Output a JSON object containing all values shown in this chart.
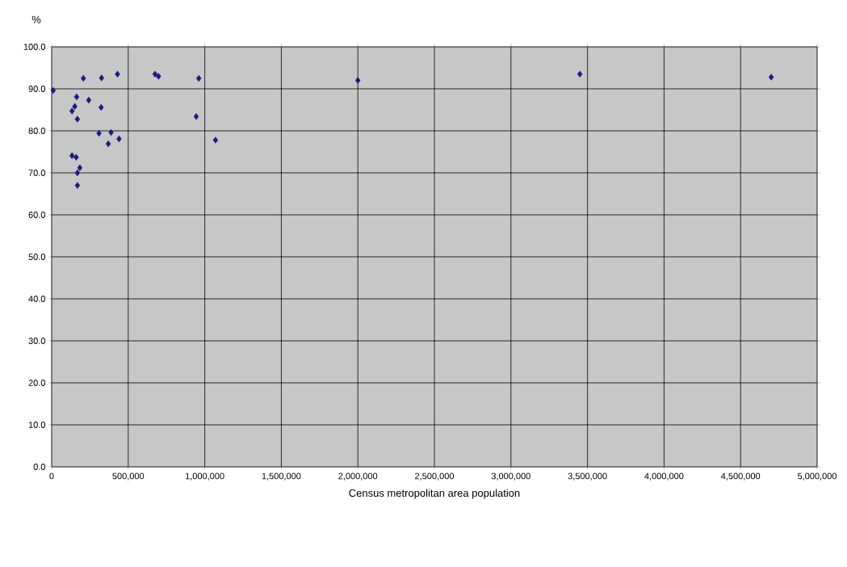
{
  "chart_data": {
    "type": "scatter",
    "xlabel": "Census metropolitan area population",
    "ylabel": "%",
    "x": [
      10000,
      207000,
      326000,
      430000,
      675000,
      698000,
      961000,
      163000,
      242000,
      151000,
      133000,
      323000,
      168000,
      944000,
      309000,
      388000,
      440000,
      370000,
      1070000,
      133000,
      160000,
      184000,
      168000,
      168000,
      2000000,
      3450000,
      4700000
    ],
    "values": [
      89.6,
      92.5,
      92.6,
      93.5,
      93.5,
      93.0,
      92.5,
      88.1,
      87.3,
      85.8,
      84.7,
      85.6,
      82.8,
      83.4,
      79.4,
      79.6,
      78.1,
      76.9,
      77.8,
      74.1,
      73.7,
      71.2,
      70.0,
      67.0,
      92.0,
      93.5,
      92.8
    ],
    "color": "#1a1a80",
    "marker": "diamond",
    "grid": true,
    "xlim": [
      0,
      5000000
    ],
    "ylim": [
      0,
      100
    ],
    "xticks": [
      0,
      {
        "value": 500000,
        "label": "500,000"
      },
      {
        "value": 1000000,
        "label": "1,000,000"
      },
      {
        "value": 1500000,
        "label": "1,500,000"
      },
      {
        "value": 2000000,
        "label": "2,000,000"
      },
      {
        "value": 2500000,
        "label": "2,500,000"
      },
      {
        "value": 3000000,
        "label": "3,000,000"
      },
      {
        "value": 3500000,
        "label": "3,500,000"
      },
      {
        "value": 4000000,
        "label": "4,000,000"
      },
      {
        "value": 4500000,
        "label": "4,500,000"
      },
      {
        "value": 5000000,
        "label": "5,000,000"
      }
    ],
    "yticks": [
      {
        "value": 0,
        "label": "0.0"
      },
      {
        "value": 10,
        "label": "10.0"
      },
      {
        "value": 20,
        "label": "20.0"
      },
      {
        "value": 30,
        "label": "30.0"
      },
      {
        "value": 40,
        "label": "40.0"
      },
      {
        "value": 50,
        "label": "50.0"
      },
      {
        "value": 60,
        "label": "60.0"
      },
      {
        "value": 70,
        "label": "70.0"
      },
      {
        "value": 80,
        "label": "80.0"
      },
      {
        "value": 90,
        "label": "90.0"
      },
      {
        "value": 100,
        "label": "100.0"
      }
    ]
  }
}
